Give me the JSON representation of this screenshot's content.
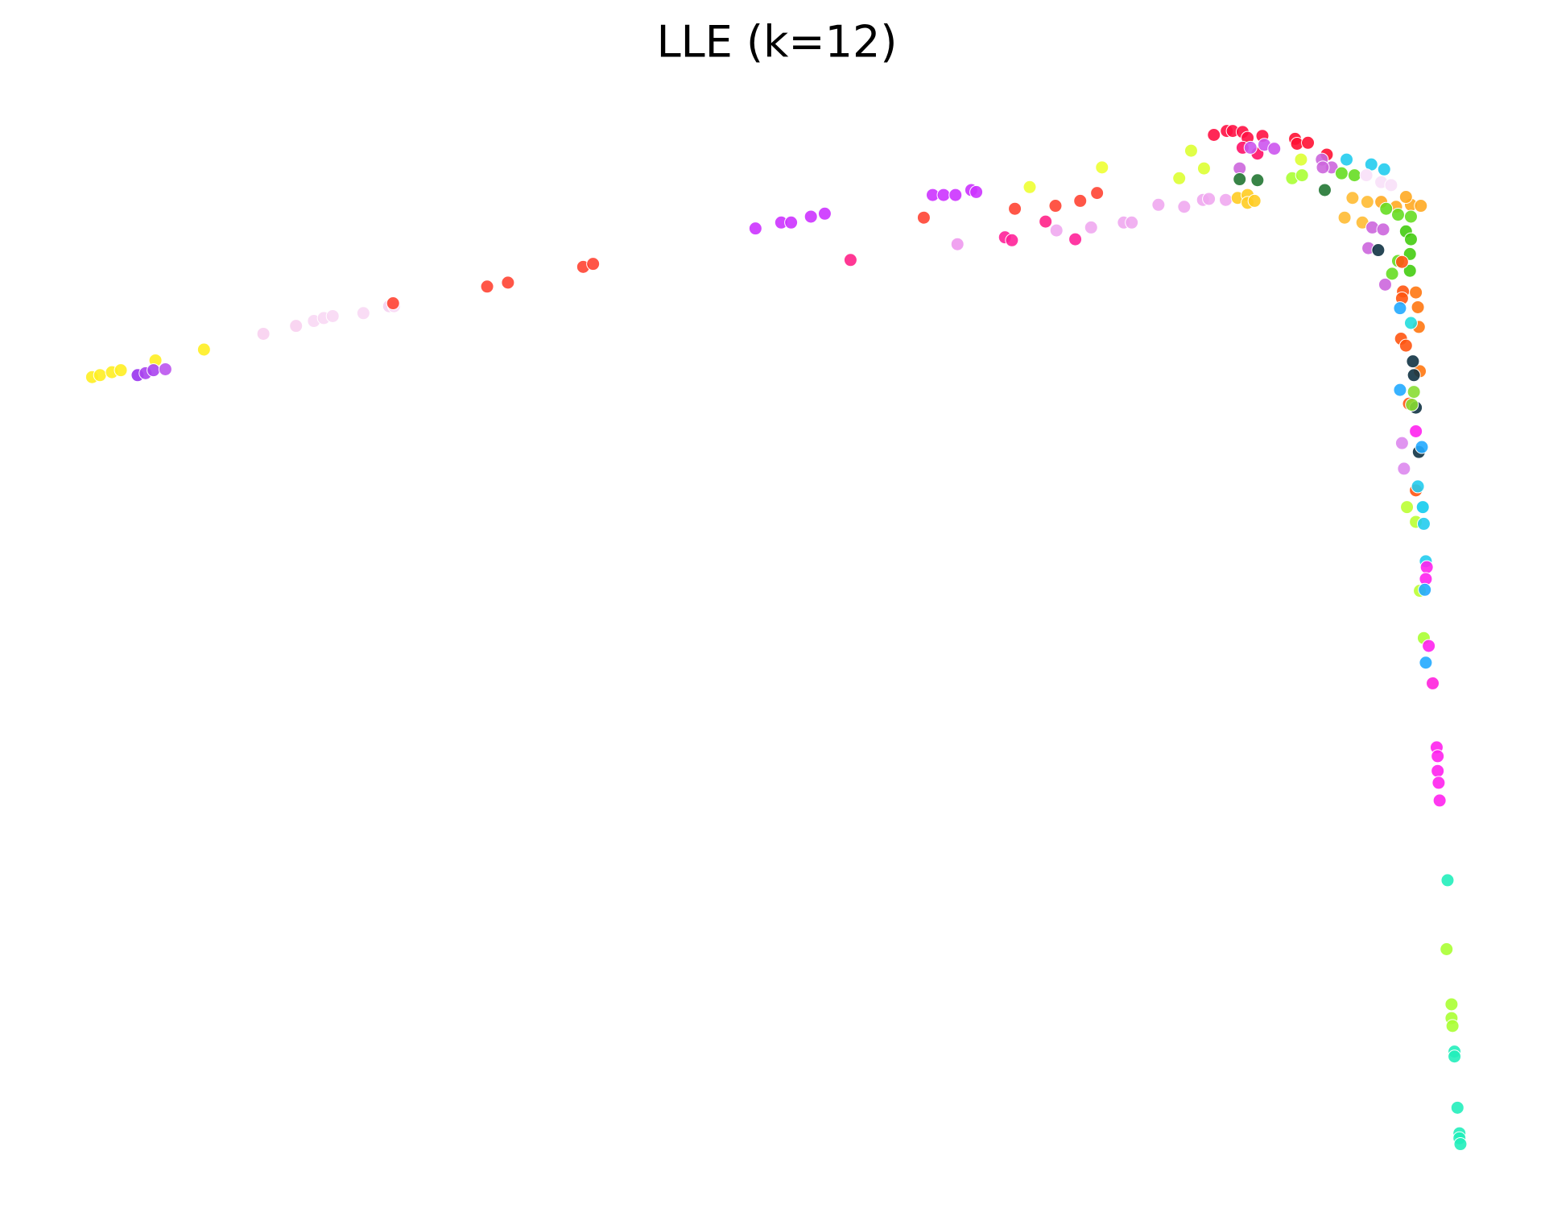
{
  "chart_data": {
    "type": "scatter",
    "title": "LLE (k=12)",
    "x": [
      93,
      101,
      113,
      122,
      157,
      206,
      139,
      147,
      155,
      167,
      266,
      299,
      317,
      327,
      336,
      367,
      393,
      398,
      397,
      492,
      513,
      589,
      599,
      763,
      789,
      799,
      819,
      833,
      859,
      933,
      942,
      953,
      965,
      981,
      986,
      967,
      1015,
      1022,
      1025,
      1040,
      1056,
      1066,
      1086,
      1091,
      1108,
      1113,
      1067,
      1102,
      1135,
      1143,
      1170,
      1196,
      1215,
      1221,
      1238,
      1191,
      1203,
      1216,
      1250,
      1260,
      1260,
      1267,
      1226,
      1239,
      1245,
      1255,
      1260,
      1275,
      1255,
      1270,
      1308,
      1310,
      1321,
      1340,
      1263,
      1277,
      1287,
      1252,
      1252,
      1270,
      1338,
      1314,
      1305,
      1315,
      1335,
      1345,
      1336,
      1360,
      1385,
      1398,
      1355,
      1368,
      1380,
      1395,
      1405,
      1366,
      1381,
      1358,
      1376,
      1395,
      1410,
      1425,
      1435,
      1420,
      1400,
      1412,
      1420,
      1425,
      1424,
      1412,
      1424,
      1406,
      1425,
      1386,
      1397,
      1382,
      1399,
      1392,
      1416,
      1417,
      1430,
      1416,
      1432,
      1433,
      1415,
      1420,
      1434,
      1423,
      1414,
      1425,
      1414,
      1427,
      1428,
      1430,
      1433,
      1428,
      1426,
      1430,
      1416,
      1436,
      1418,
      1430,
      1432,
      1421,
      1437,
      1430,
      1438,
      1440,
      1441,
      1440,
      1434,
      1439,
      1438,
      1443,
      1440,
      1447,
      1451,
      1452,
      1452,
      1453,
      1454,
      1462,
      1461,
      1466,
      1466,
      1467,
      1469,
      1469,
      1472,
      1474,
      1474,
      1475
    ],
    "values": [
      383,
      381,
      378,
      376,
      366,
      355,
      381,
      379,
      376,
      375,
      339,
      331,
      326,
      323,
      321,
      318,
      311,
      311,
      308,
      291,
      287,
      271,
      268,
      232,
      226,
      226,
      220,
      217,
      264,
      221,
      198,
      198,
      198,
      193,
      195,
      248,
      241,
      244,
      212,
      190,
      225,
      209,
      243,
      204,
      196,
      170,
      234,
      231,
      226,
      226,
      208,
      210,
      203,
      202,
      203,
      181,
      153,
      171,
      201,
      198,
      206,
      204,
      137,
      133,
      133,
      134,
      140,
      138,
      150,
      156,
      141,
      146,
      145,
      157,
      150,
      147,
      151,
      171,
      182,
      183,
      193,
      162,
      181,
      178,
      162,
      170,
      170,
      162,
      167,
      172,
      176,
      178,
      178,
      185,
      188,
      201,
      205,
      221,
      226,
      205,
      210,
      208,
      209,
      200,
      212,
      218,
      235,
      243,
      258,
      265,
      275,
      278,
      220,
      231,
      233,
      252,
      289,
      254,
      266,
      296,
      297,
      303,
      312,
      332,
      344,
      351,
      377,
      410,
      313,
      328,
      396,
      367,
      381,
      414,
      459,
      398,
      411,
      438,
      450,
      454,
      476,
      498,
      494,
      515,
      515,
      530,
      532,
      570,
      576,
      588,
      600,
      599,
      648,
      656,
      673,
      694,
      759,
      768,
      783,
      795,
      813,
      894,
      964,
      1020,
      1034,
      1042,
      1068,
      1073,
      1125,
      1151,
      1156,
      1162
    ],
    "colors": [
      "#ffee22",
      "#ffee22",
      "#ffee22",
      "#ffee22",
      "#ffee22",
      "#ffee22",
      "#9933ee",
      "#aa44ee",
      "#aa44ee",
      "#bb55ee",
      "#f8d0f0",
      "#f8d0f0",
      "#f8d8f4",
      "#f8d8f4",
      "#f8d8f4",
      "#f8d8f4",
      "#f4d0f0",
      "#f8d8f4",
      "#ff4433",
      "#ff4433",
      "#ff4433",
      "#ff4433",
      "#ff4433",
      "#cc33ff",
      "#cc33ff",
      "#cc33ff",
      "#cc33ff",
      "#cc33ff",
      "#ff2288",
      "#ff4433",
      "#cc33ff",
      "#cc33ff",
      "#cc33ff",
      "#cc33ff",
      "#cc33ff",
      "#ee99ee",
      "#ff2299",
      "#ff2299",
      "#ff4433",
      "#eeff33",
      "#ff2288",
      "#ff4433",
      "#ff2299",
      "#ff4433",
      "#ff4433",
      "#eeff33",
      "#f0a8f0",
      "#f0a8f0",
      "#f0a8f0",
      "#f0a8f0",
      "#f0a8f0",
      "#f0a8f0",
      "#f0a8f0",
      "#f0a8f0",
      "#f0a8f0",
      "#ddff33",
      "#ddff33",
      "#ddff33",
      "#ffcc22",
      "#ffcc22",
      "#ffcc22",
      "#ffcc22",
      "#ff1144",
      "#ff1144",
      "#ff1144",
      "#ff1144",
      "#ff1144",
      "#ff1144",
      "#ff1166",
      "#ff1166",
      "#ff1133",
      "#ff1133",
      "#ff1133",
      "#ff1133",
      "#cc55ee",
      "#cc55ee",
      "#cc55ee",
      "#cc66dd",
      "#227733",
      "#227733",
      "#227733",
      "#ddff33",
      "#aaff33",
      "#aaff33",
      "#cc66dd",
      "#cc66dd",
      "#cc66dd",
      "#22ccee",
      "#22ccee",
      "#22ccee",
      "#66dd22",
      "#66dd22",
      "#f8e0f8",
      "#f8e0f8",
      "#f8e0f8",
      "#ffbb33",
      "#ffbb33",
      "#ffbb33",
      "#ffbb33",
      "#ffaa22",
      "#ffaa22",
      "#ffaa22",
      "#ffaa22",
      "#ffaa22",
      "#66dd22",
      "#66dd22",
      "#44cc11",
      "#44cc11",
      "#44cc11",
      "#66dd22",
      "#44cc11",
      "#66dd22",
      "#66dd22",
      "#cc66dd",
      "#cc66dd",
      "#cc66dd",
      "#cc66dd",
      "#113344",
      "#ff5511",
      "#ff5511",
      "#ff7711",
      "#ff5511",
      "#ff7711",
      "#ff7711",
      "#ff5511",
      "#ff5511",
      "#ff7711",
      "#ff5511",
      "#22aaff",
      "#22dddd",
      "#22aaff",
      "#113344",
      "#113344",
      "#113344",
      "#113344",
      "#88dd33",
      "#88dd33",
      "#ff22ee",
      "#dd88ee",
      "#22aaff",
      "#dd88ee",
      "#ff5511",
      "#22ccee",
      "#bbff33",
      "#11ccee",
      "#bbff33",
      "#22ccee",
      "#22ccee",
      "#ff22ee",
      "#ff22ee",
      "#bbff33",
      "#22aaff",
      "#aaff33",
      "#ff22ee",
      "#22aaff",
      "#ff22dd",
      "#ff22ee",
      "#ff22ee",
      "#ff22ee",
      "#ff22ee",
      "#ff22ee",
      "#22eebb",
      "#aaff33",
      "#aaff33",
      "#aaff33",
      "#aaff33",
      "#22eebb",
      "#22eebb",
      "#22eebb",
      "#22eebb",
      "#22eebb",
      "#22eebb"
    ],
    "xlim": [
      60,
      1510
    ],
    "ylim": [
      1200,
      110
    ]
  }
}
